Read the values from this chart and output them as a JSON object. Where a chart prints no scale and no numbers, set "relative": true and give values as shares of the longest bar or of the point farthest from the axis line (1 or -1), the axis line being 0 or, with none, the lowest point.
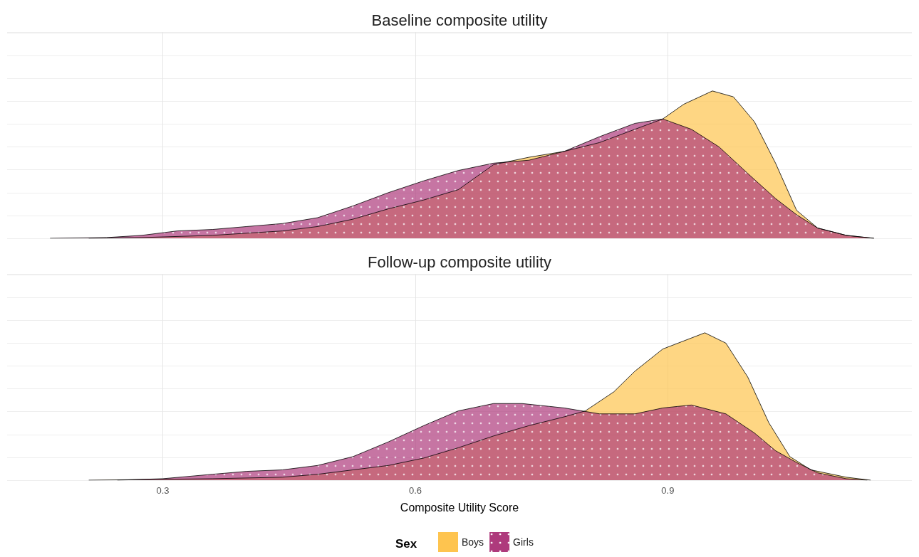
{
  "chart_data": [
    {
      "type": "area",
      "title": "Baseline composite utility",
      "relative": true,
      "xlim": [
        0.115,
        1.19
      ],
      "xticks": [
        0.3,
        0.6,
        0.9
      ],
      "grid": true,
      "tick_labels": false,
      "legend": false,
      "series": [
        {
          "color": "#fec44f",
          "x": [
            0.212,
            0.275,
            0.359,
            0.442,
            0.484,
            0.526,
            0.568,
            0.61,
            0.651,
            0.693,
            0.735,
            0.777,
            0.819,
            0.861,
            0.894,
            0.919,
            0.953,
            0.978,
            1.003,
            1.028,
            1.053,
            1.078,
            1.112,
            1.145
          ],
          "values": [
            0,
            0.005,
            0.02,
            0.05,
            0.08,
            0.13,
            0.2,
            0.26,
            0.33,
            0.5,
            0.55,
            0.59,
            0.65,
            0.74,
            0.81,
            0.91,
            1,
            0.96,
            0.79,
            0.51,
            0.19,
            0.07,
            0.02,
            0
          ]
        },
        {
          "color": "#ae3a7c",
          "x": [
            0.166,
            0.233,
            0.275,
            0.317,
            0.359,
            0.4,
            0.442,
            0.484,
            0.526,
            0.568,
            0.61,
            0.651,
            0.693,
            0.735,
            0.777,
            0.819,
            0.861,
            0.894,
            0.928,
            0.961,
            0.995,
            1.028,
            1.053,
            1.078,
            1.112,
            1.145
          ],
          "values": [
            0,
            0.005,
            0.02,
            0.05,
            0.06,
            0.08,
            0.1,
            0.14,
            0.22,
            0.31,
            0.39,
            0.46,
            0.51,
            0.53,
            0.59,
            0.69,
            0.78,
            0.81,
            0.74,
            0.62,
            0.44,
            0.27,
            0.16,
            0.07,
            0.02,
            0
          ]
        }
      ]
    },
    {
      "type": "area",
      "title": "Follow-up composite utility",
      "xlabel": "Composite Utility Score",
      "legend_title": "Sex",
      "relative": true,
      "xlim": [
        0.115,
        1.19
      ],
      "xticks": [
        0.3,
        0.6,
        0.9
      ],
      "grid": true,
      "tick_labels": "x",
      "legend": "bottom",
      "series": [
        {
          "name": "Boys",
          "color": "#fec44f",
          "x": [
            0.212,
            0.275,
            0.359,
            0.442,
            0.484,
            0.526,
            0.568,
            0.61,
            0.651,
            0.693,
            0.735,
            0.777,
            0.802,
            0.836,
            0.861,
            0.894,
            0.944,
            0.969,
            0.995,
            1.02,
            1.045,
            1.07,
            1.112,
            1.141
          ],
          "values": [
            0,
            0.004,
            0.01,
            0.02,
            0.04,
            0.07,
            0.1,
            0.15,
            0.22,
            0.3,
            0.37,
            0.43,
            0.47,
            0.6,
            0.74,
            0.89,
            1,
            0.93,
            0.7,
            0.39,
            0.16,
            0.07,
            0.02,
            0
          ]
        },
        {
          "name": "Girls",
          "color": "#ae3a7c",
          "x": [
            0.246,
            0.3,
            0.359,
            0.4,
            0.442,
            0.484,
            0.526,
            0.568,
            0.61,
            0.651,
            0.693,
            0.727,
            0.777,
            0.819,
            0.861,
            0.894,
            0.928,
            0.969,
            1.003,
            1.028,
            1.053,
            1.078,
            1.112,
            1.137
          ],
          "values": [
            0,
            0.01,
            0.04,
            0.06,
            0.07,
            0.1,
            0.16,
            0.26,
            0.37,
            0.47,
            0.52,
            0.52,
            0.49,
            0.45,
            0.45,
            0.49,
            0.51,
            0.45,
            0.32,
            0.2,
            0.12,
            0.05,
            0.01,
            0
          ]
        }
      ]
    }
  ]
}
